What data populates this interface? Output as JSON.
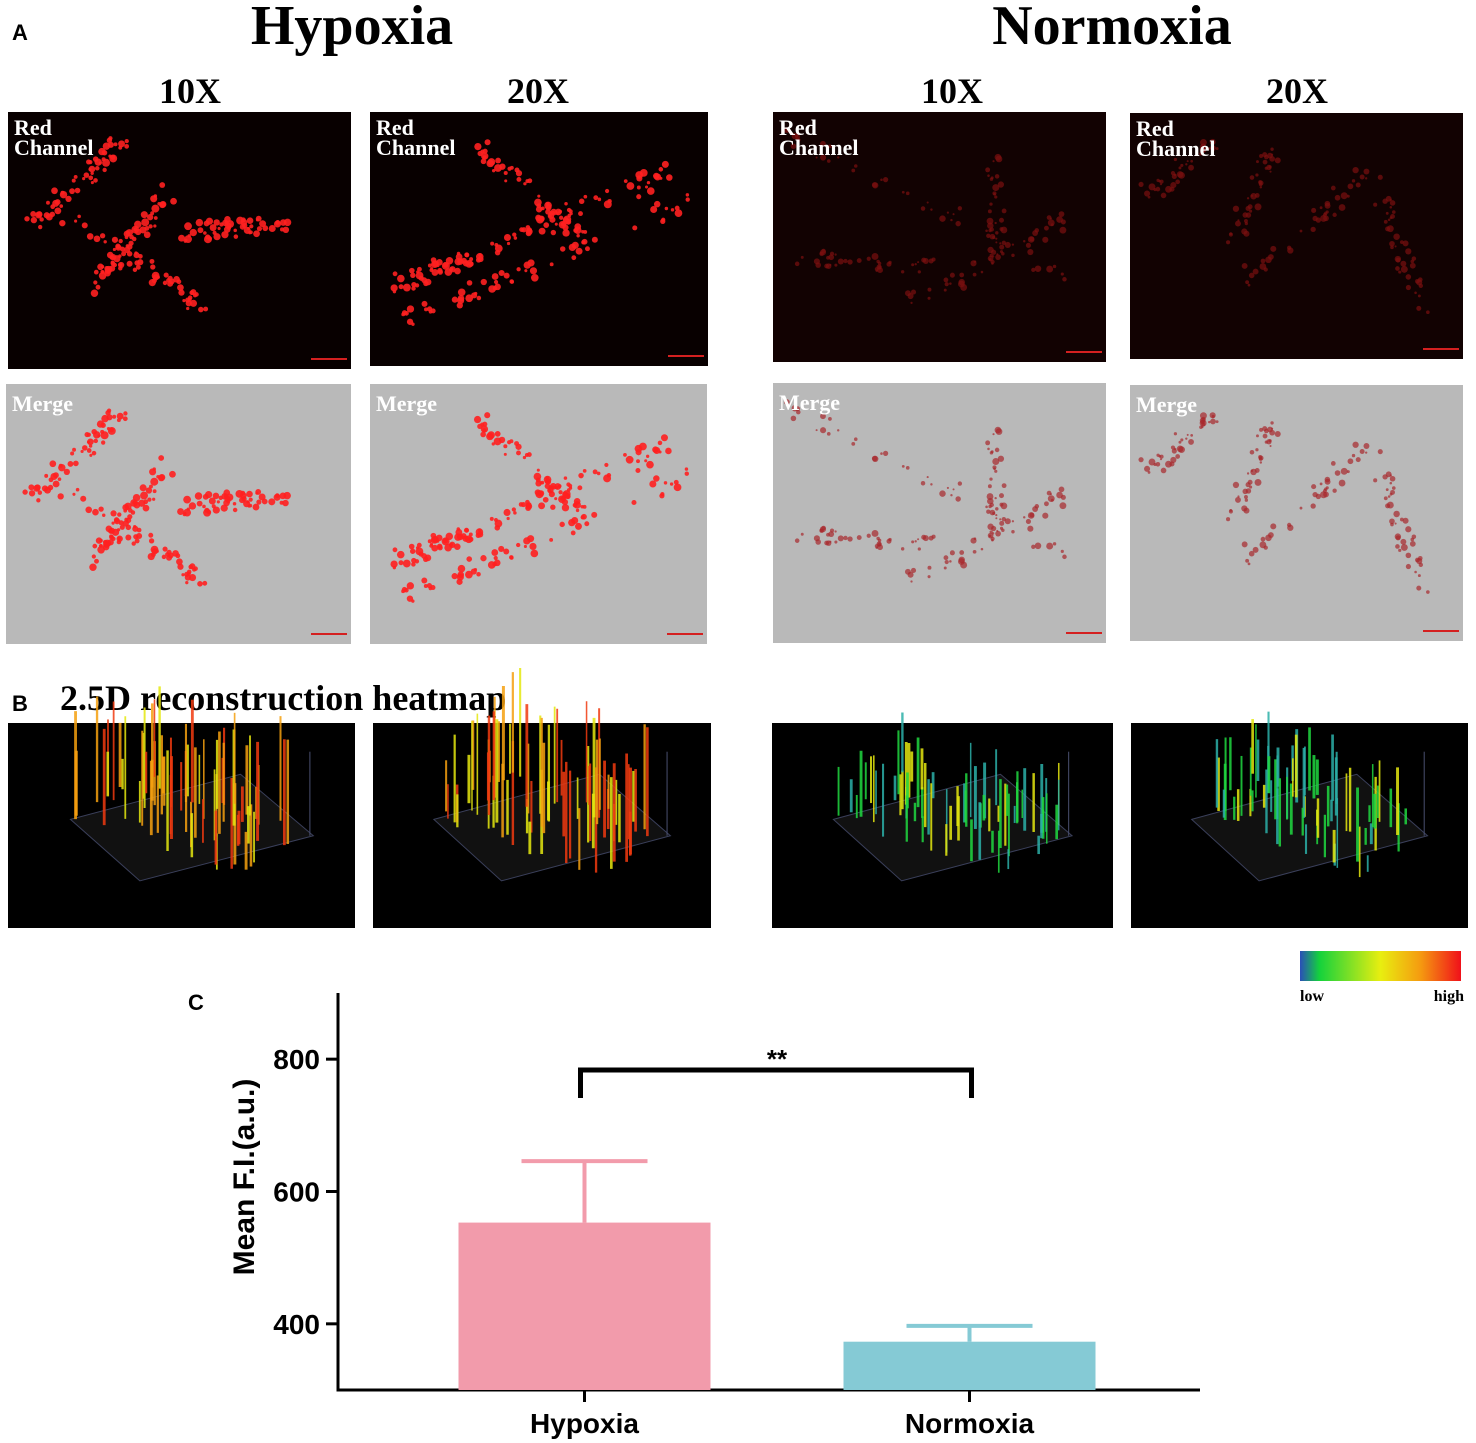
{
  "panel_a": {
    "label": "A",
    "groups": [
      {
        "title": "Hypoxia",
        "columns": [
          "10X",
          "20X"
        ]
      },
      {
        "title": "Normoxia",
        "columns": [
          "10X",
          "20X"
        ]
      }
    ],
    "images": [
      {
        "label": "Red Channel"
      },
      {
        "label": "Red Channel"
      },
      {
        "label": "Red Channel"
      },
      {
        "label": "Red Channel"
      },
      {
        "label": "Merge"
      },
      {
        "label": "Merge"
      },
      {
        "label": "Merge"
      },
      {
        "label": "Merge"
      }
    ]
  },
  "panel_b": {
    "label": "B",
    "title": "2.5D reconstruction heatmap",
    "legend": {
      "low": "low",
      "high": "high"
    }
  },
  "chart_data": {
    "type": "bar",
    "panel_label": "C",
    "y_label": "Mean F.I.(a.u.)",
    "categories": [
      "Hypoxia",
      "Normoxia"
    ],
    "values": [
      553,
      373
    ],
    "errors": [
      93,
      24
    ],
    "colors": [
      "#f29bab",
      "#85cad5"
    ],
    "ylim": [
      300,
      900
    ],
    "yticks": [
      400,
      600,
      800
    ],
    "grid": false,
    "annotation": "**"
  }
}
